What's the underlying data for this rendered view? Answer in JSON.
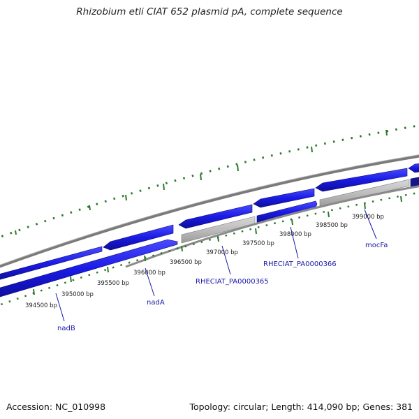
{
  "title": "Rhizobium etli CIAT 652 plasmid pA, complete sequence",
  "footer": {
    "accession": "Accession: NC_010998",
    "stats": "Topology: circular; Length: 414,090 bp; Genes: 381"
  },
  "colors": {
    "gene_forward": "#1a1ae6",
    "gene_other": "#b8b8b8",
    "backbone": "#7a7a7a",
    "gc_ticks": "#2a7a2a",
    "gene_label": "#1a1aa8"
  },
  "scale_labels": [
    "394500 bp",
    "395000 bp",
    "395500 bp",
    "396000 bp",
    "396500 bp",
    "397000 bp",
    "397500 bp",
    "398000 bp",
    "398500 bp",
    "399000 bp"
  ],
  "genes": [
    {
      "name": "nadB"
    },
    {
      "name": "nadA"
    },
    {
      "name": "RHECIAT_PA0000365"
    },
    {
      "name": "RHECIAT_PA0000366"
    },
    {
      "name": "mocFa"
    }
  ]
}
